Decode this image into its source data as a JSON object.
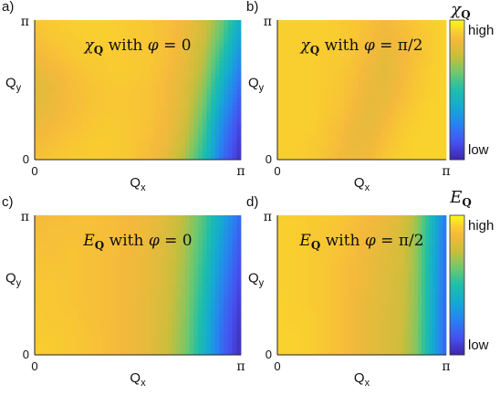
{
  "chart_data": [
    {
      "type": "heatmap",
      "panel_label": "a)",
      "annotation": {
        "symbol": "χ",
        "subscript": "Q",
        "text": " with ",
        "phi_symbol": "φ",
        "phi_value": " = 0"
      },
      "xlabel": "Q",
      "xlabel_sub": "x",
      "ylabel": "Q",
      "ylabel_sub": "y",
      "xticks": [
        "0",
        "π"
      ],
      "yticks": [
        "0",
        "π"
      ],
      "xlim": [
        0,
        3.14159
      ],
      "ylim": [
        0,
        3.14159
      ],
      "colormap": "parula",
      "grid_values": [
        [
          0.9,
          0.91,
          0.92,
          0.92,
          0.92,
          0.91,
          0.9,
          0.88,
          0.85,
          0.78,
          0.62,
          0.4
        ],
        [
          0.88,
          0.9,
          0.91,
          0.92,
          0.92,
          0.91,
          0.9,
          0.88,
          0.84,
          0.76,
          0.58,
          0.34
        ],
        [
          0.85,
          0.88,
          0.9,
          0.91,
          0.91,
          0.91,
          0.9,
          0.88,
          0.83,
          0.73,
          0.52,
          0.28
        ],
        [
          0.82,
          0.85,
          0.88,
          0.9,
          0.91,
          0.91,
          0.9,
          0.87,
          0.82,
          0.7,
          0.46,
          0.22
        ],
        [
          0.8,
          0.83,
          0.87,
          0.89,
          0.9,
          0.9,
          0.89,
          0.86,
          0.8,
          0.66,
          0.4,
          0.16
        ],
        [
          0.81,
          0.84,
          0.87,
          0.89,
          0.9,
          0.9,
          0.89,
          0.86,
          0.79,
          0.62,
          0.34,
          0.12
        ],
        [
          0.83,
          0.86,
          0.88,
          0.9,
          0.91,
          0.9,
          0.89,
          0.85,
          0.77,
          0.58,
          0.28,
          0.08
        ],
        [
          0.86,
          0.88,
          0.9,
          0.91,
          0.91,
          0.9,
          0.88,
          0.84,
          0.74,
          0.54,
          0.24,
          0.05
        ],
        [
          0.88,
          0.9,
          0.91,
          0.91,
          0.91,
          0.9,
          0.87,
          0.82,
          0.7,
          0.5,
          0.2,
          0.03
        ]
      ]
    },
    {
      "type": "heatmap",
      "panel_label": "b)",
      "annotation": {
        "symbol": "χ",
        "subscript": "Q",
        "text": " with ",
        "phi_symbol": "φ",
        "phi_value": " = π/2"
      },
      "xlabel": "Q",
      "xlabel_sub": "x",
      "ylabel": "Q",
      "ylabel_sub": "y",
      "xticks": [
        "0",
        "π"
      ],
      "yticks": [
        "0",
        "π"
      ],
      "xlim": [
        0,
        3.14159
      ],
      "ylim": [
        0,
        3.14159
      ],
      "colormap": "parula",
      "grid_values": [
        [
          0.92,
          0.92,
          0.92,
          0.92,
          0.91,
          0.9,
          0.88,
          0.86,
          0.88,
          0.9,
          0.92,
          0.93
        ],
        [
          0.92,
          0.92,
          0.92,
          0.92,
          0.91,
          0.9,
          0.87,
          0.84,
          0.86,
          0.89,
          0.91,
          0.93
        ],
        [
          0.92,
          0.92,
          0.92,
          0.91,
          0.91,
          0.89,
          0.86,
          0.82,
          0.85,
          0.88,
          0.91,
          0.93
        ],
        [
          0.92,
          0.92,
          0.92,
          0.91,
          0.9,
          0.88,
          0.84,
          0.81,
          0.85,
          0.89,
          0.92,
          0.93
        ],
        [
          0.92,
          0.92,
          0.92,
          0.91,
          0.9,
          0.87,
          0.83,
          0.82,
          0.86,
          0.9,
          0.92,
          0.93
        ],
        [
          0.92,
          0.92,
          0.92,
          0.91,
          0.89,
          0.86,
          0.82,
          0.84,
          0.88,
          0.91,
          0.93,
          0.93
        ],
        [
          0.92,
          0.92,
          0.92,
          0.9,
          0.88,
          0.84,
          0.82,
          0.86,
          0.9,
          0.92,
          0.93,
          0.93
        ],
        [
          0.92,
          0.92,
          0.91,
          0.9,
          0.87,
          0.83,
          0.84,
          0.88,
          0.91,
          0.93,
          0.93,
          0.93
        ],
        [
          0.92,
          0.92,
          0.91,
          0.89,
          0.86,
          0.84,
          0.86,
          0.9,
          0.92,
          0.93,
          0.93,
          0.93
        ]
      ]
    },
    {
      "type": "heatmap",
      "panel_label": "c)",
      "annotation": {
        "symbol": "E",
        "subscript": "Q",
        "text": " with ",
        "phi_symbol": "φ",
        "phi_value": " = 0"
      },
      "xlabel": "Q",
      "xlabel_sub": "x",
      "ylabel": "Q",
      "ylabel_sub": "y",
      "xticks": [
        "0",
        "π"
      ],
      "yticks": [
        "0",
        "π"
      ],
      "xlim": [
        0,
        3.14159
      ],
      "ylim": [
        0,
        3.14159
      ],
      "colormap": "parula",
      "grid_values": [
        [
          0.86,
          0.87,
          0.88,
          0.88,
          0.87,
          0.86,
          0.84,
          0.8,
          0.72,
          0.58,
          0.38,
          0.18
        ],
        [
          0.87,
          0.88,
          0.88,
          0.88,
          0.87,
          0.86,
          0.84,
          0.79,
          0.71,
          0.56,
          0.35,
          0.15
        ],
        [
          0.88,
          0.88,
          0.89,
          0.88,
          0.87,
          0.86,
          0.83,
          0.79,
          0.7,
          0.54,
          0.32,
          0.12
        ],
        [
          0.89,
          0.89,
          0.89,
          0.88,
          0.87,
          0.85,
          0.83,
          0.78,
          0.69,
          0.52,
          0.29,
          0.1
        ],
        [
          0.9,
          0.9,
          0.89,
          0.88,
          0.87,
          0.85,
          0.83,
          0.78,
          0.68,
          0.5,
          0.26,
          0.08
        ],
        [
          0.9,
          0.9,
          0.89,
          0.88,
          0.87,
          0.85,
          0.82,
          0.77,
          0.67,
          0.48,
          0.23,
          0.06
        ],
        [
          0.91,
          0.9,
          0.9,
          0.88,
          0.87,
          0.85,
          0.82,
          0.77,
          0.66,
          0.46,
          0.21,
          0.04
        ],
        [
          0.91,
          0.91,
          0.9,
          0.89,
          0.87,
          0.85,
          0.82,
          0.76,
          0.65,
          0.45,
          0.19,
          0.03
        ],
        [
          0.92,
          0.91,
          0.9,
          0.89,
          0.87,
          0.85,
          0.82,
          0.76,
          0.64,
          0.44,
          0.18,
          0.02
        ]
      ]
    },
    {
      "type": "heatmap",
      "panel_label": "d)",
      "annotation": {
        "symbol": "E",
        "subscript": "Q",
        "text": " with ",
        "phi_symbol": "φ",
        "phi_value": " = π/2"
      },
      "xlabel": "Q",
      "xlabel_sub": "x",
      "ylabel": "Q",
      "ylabel_sub": "y",
      "xticks": [
        "0",
        "π"
      ],
      "yticks": [
        "0",
        "π"
      ],
      "xlim": [
        0,
        3.14159
      ],
      "ylim": [
        0,
        3.14159
      ],
      "colormap": "parula",
      "grid_values": [
        [
          0.92,
          0.92,
          0.91,
          0.91,
          0.9,
          0.88,
          0.86,
          0.84,
          0.8,
          0.7,
          0.48,
          0.22
        ],
        [
          0.92,
          0.92,
          0.91,
          0.9,
          0.89,
          0.87,
          0.85,
          0.82,
          0.79,
          0.69,
          0.46,
          0.2
        ],
        [
          0.92,
          0.92,
          0.91,
          0.9,
          0.89,
          0.87,
          0.84,
          0.81,
          0.78,
          0.68,
          0.45,
          0.19
        ],
        [
          0.92,
          0.92,
          0.91,
          0.9,
          0.88,
          0.86,
          0.83,
          0.8,
          0.78,
          0.68,
          0.44,
          0.18
        ],
        [
          0.92,
          0.92,
          0.91,
          0.9,
          0.88,
          0.86,
          0.83,
          0.8,
          0.77,
          0.67,
          0.44,
          0.18
        ],
        [
          0.93,
          0.92,
          0.91,
          0.9,
          0.88,
          0.85,
          0.82,
          0.8,
          0.77,
          0.67,
          0.43,
          0.17
        ],
        [
          0.93,
          0.92,
          0.92,
          0.9,
          0.88,
          0.85,
          0.82,
          0.79,
          0.77,
          0.66,
          0.43,
          0.17
        ],
        [
          0.93,
          0.93,
          0.92,
          0.9,
          0.88,
          0.85,
          0.82,
          0.79,
          0.76,
          0.66,
          0.42,
          0.16
        ],
        [
          0.93,
          0.93,
          0.92,
          0.9,
          0.88,
          0.85,
          0.82,
          0.79,
          0.76,
          0.66,
          0.42,
          0.16
        ]
      ]
    }
  ],
  "colorbars": [
    {
      "title_symbol": "χ",
      "title_subscript": "Q",
      "high_label": "high",
      "low_label": "low"
    },
    {
      "title_symbol": "E",
      "title_subscript": "Q",
      "high_label": "high",
      "low_label": "low"
    }
  ]
}
